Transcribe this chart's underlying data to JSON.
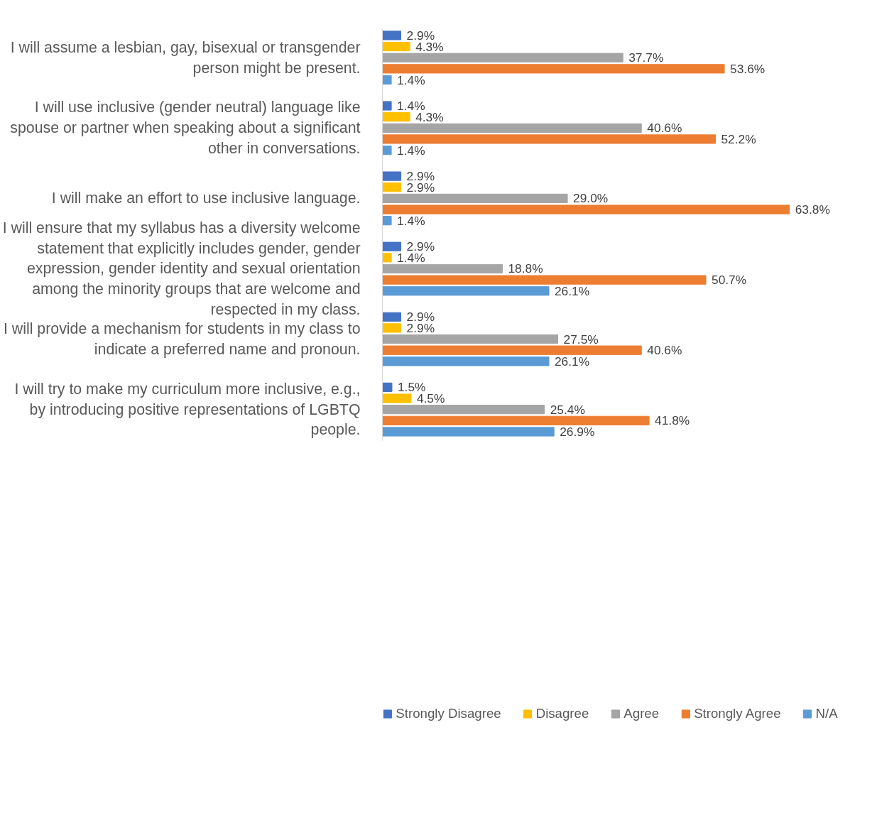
{
  "chart_data": {
    "type": "bar",
    "orientation": "horizontal",
    "legend": "bottom",
    "grid": false,
    "categories": [
      "I will assume a lesbian, gay, bisexual or transgender\nperson might be present.",
      "I will use inclusive (gender neutral) language like\nspouse or partner when speaking about a significant\nother in conversations.",
      "I will make an effort to use inclusive language.",
      "I will ensure that my syllabus has a diversity welcome\nstatement that explicitly includes gender, gender\nexpression, gender identity and sexual orientation\namong the minority groups that are welcome and\nrespected in my class.",
      "I will provide a mechanism for students in my class to\nindicate a preferred name and pronoun.",
      "I will try to make my curriculum more inclusive, e.g.,\nby introducing positive representations of LGBTQ\npeople."
    ],
    "series": [
      {
        "name": "Strongly Disagree",
        "color": "#4472c4",
        "values": [
          2.9,
          1.4,
          2.9,
          2.9,
          2.9,
          1.5
        ],
        "value_labels": [
          "2.9%",
          "1.4%",
          "2.9%",
          "2.9%",
          "2.9%",
          "1.5%"
        ]
      },
      {
        "name": "Disagree",
        "color": "#ffc000",
        "values": [
          4.3,
          4.3,
          2.9,
          1.4,
          2.9,
          4.5
        ],
        "value_labels": [
          "4.3%",
          "4.3%",
          "2.9%",
          "1.4%",
          "2.9%",
          "4.5%"
        ]
      },
      {
        "name": "Agree",
        "color": "#a5a5a5",
        "values": [
          37.7,
          40.6,
          29.0,
          18.8,
          27.5,
          25.4
        ],
        "value_labels": [
          "37.7%",
          "40.6%",
          "29.0%",
          "18.8%",
          "27.5%",
          "25.4%"
        ]
      },
      {
        "name": "Strongly Agree",
        "color": "#ed7d31",
        "values": [
          53.6,
          52.2,
          63.8,
          50.7,
          40.6,
          41.8
        ],
        "value_labels": [
          "53.6%",
          "52.2%",
          "63.8%",
          "50.7%",
          "40.6%",
          "41.8%"
        ]
      },
      {
        "name": "N/A",
        "color": "#5b9bd5",
        "values": [
          1.4,
          1.4,
          1.4,
          26.1,
          26.1,
          26.9
        ],
        "value_labels": [
          "1.4%",
          "1.4%",
          "1.4%",
          "26.1%",
          "26.1%",
          "26.9%"
        ]
      }
    ]
  }
}
